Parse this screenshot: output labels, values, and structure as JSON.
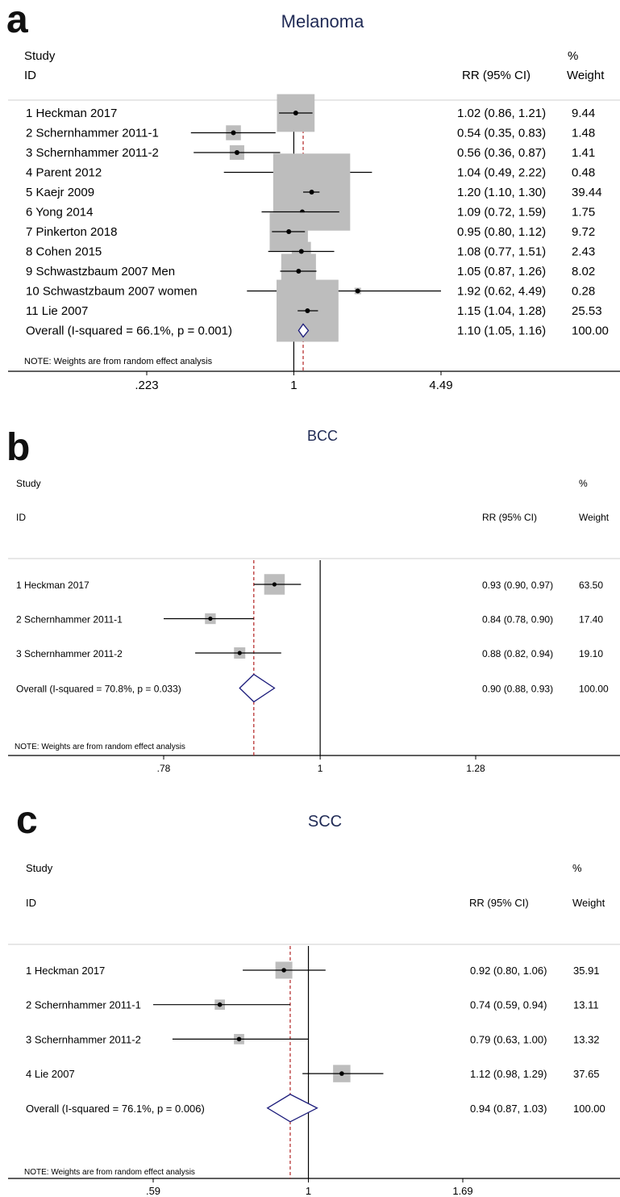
{
  "chart_data": [
    {
      "type": "forest",
      "panel_letter": "a",
      "title": "Melanoma",
      "header": {
        "study": "Study",
        "id": "ID",
        "rr": "RR (95% CI)",
        "pct": "%",
        "weight": "Weight"
      },
      "studies": [
        {
          "label": "1 Heckman 2017",
          "rr": 1.02,
          "lo": 0.86,
          "hi": 1.21,
          "rr_text": "1.02 (0.86, 1.21)",
          "weight": 9.44,
          "weight_text": "9.44"
        },
        {
          "label": "2 Schernhammer 2011-1",
          "rr": 0.54,
          "lo": 0.35,
          "hi": 0.83,
          "rr_text": "0.54 (0.35, 0.83)",
          "weight": 1.48,
          "weight_text": "1.48"
        },
        {
          "label": "3 Schernhammer 2011-2",
          "rr": 0.56,
          "lo": 0.36,
          "hi": 0.87,
          "rr_text": "0.56 (0.36, 0.87)",
          "weight": 1.41,
          "weight_text": "1.41"
        },
        {
          "label": "4 Parent 2012",
          "rr": 1.04,
          "lo": 0.49,
          "hi": 2.22,
          "rr_text": "1.04 (0.49, 2.22)",
          "weight": 0.48,
          "weight_text": "0.48"
        },
        {
          "label": "5 Kaejr 2009",
          "rr": 1.2,
          "lo": 1.1,
          "hi": 1.3,
          "rr_text": "1.20 (1.10, 1.30)",
          "weight": 39.44,
          "weight_text": "39.44"
        },
        {
          "label": "6 Yong 2014",
          "rr": 1.09,
          "lo": 0.72,
          "hi": 1.59,
          "rr_text": "1.09 (0.72, 1.59)",
          "weight": 1.75,
          "weight_text": "1.75"
        },
        {
          "label": "7 Pinkerton 2018",
          "rr": 0.95,
          "lo": 0.8,
          "hi": 1.12,
          "rr_text": "0.95 (0.80, 1.12)",
          "weight": 9.72,
          "weight_text": "9.72"
        },
        {
          "label": "8 Cohen 2015",
          "rr": 1.08,
          "lo": 0.77,
          "hi": 1.51,
          "rr_text": "1.08 (0.77, 1.51)",
          "weight": 2.43,
          "weight_text": "2.43"
        },
        {
          "label": "9 Schwastzbaum 2007 Men",
          "rr": 1.05,
          "lo": 0.87,
          "hi": 1.26,
          "rr_text": "1.05 (0.87, 1.26)",
          "weight": 8.02,
          "weight_text": "8.02"
        },
        {
          "label": "10 Schwastzbaum 2007 women",
          "rr": 1.92,
          "lo": 0.62,
          "hi": 4.49,
          "rr_text": "1.92 (0.62, 4.49)",
          "weight": 0.28,
          "weight_text": "0.28"
        },
        {
          "label": "11 Lie 2007",
          "rr": 1.15,
          "lo": 1.04,
          "hi": 1.28,
          "rr_text": "1.15 (1.04, 1.28)",
          "weight": 25.53,
          "weight_text": "25.53"
        }
      ],
      "overall": {
        "label": "Overall  (I-squared = 66.1%, p = 0.001)",
        "rr": 1.1,
        "lo": 1.05,
        "hi": 1.16,
        "rr_text": "1.10 (1.05, 1.16)",
        "weight_text": "100.00"
      },
      "note": "NOTE: Weights are from random effect analysis",
      "x_scale": "log",
      "xlim": [
        0.223,
        4.49
      ],
      "ticks": [
        {
          "value": 0.223,
          "label": ".223"
        },
        {
          "value": 1,
          "label": "1"
        },
        {
          "value": 4.49,
          "label": "4.49"
        }
      ]
    },
    {
      "type": "forest",
      "panel_letter": "b",
      "title": "BCC",
      "header": {
        "study": "Study",
        "id": "ID",
        "rr": "RR (95% CI)",
        "pct": "%",
        "weight": "Weight"
      },
      "studies": [
        {
          "label": "1  Heckman 2017",
          "rr": 0.93,
          "lo": 0.9,
          "hi": 0.97,
          "rr_text": "0.93 (0.90, 0.97)",
          "weight": 63.5,
          "weight_text": "63.50"
        },
        {
          "label": "2  Schernhammer 2011-1",
          "rr": 0.84,
          "lo": 0.78,
          "hi": 0.9,
          "rr_text": "0.84 (0.78, 0.90)",
          "weight": 17.4,
          "weight_text": "17.40"
        },
        {
          "label": "3  Schernhammer 2011-2",
          "rr": 0.88,
          "lo": 0.82,
          "hi": 0.94,
          "rr_text": "0.88 (0.82, 0.94)",
          "weight": 19.1,
          "weight_text": "19.10"
        }
      ],
      "overall": {
        "label": "Overall  (I-squared = 70.8%, p = 0.033)",
        "rr": 0.9,
        "lo": 0.88,
        "hi": 0.93,
        "rr_text": "0.90 (0.88, 0.93)",
        "weight_text": "100.00"
      },
      "note": "NOTE: Weights are from random effect analysis",
      "x_scale": "log",
      "xlim": [
        0.78,
        1.28
      ],
      "ticks": [
        {
          "value": 0.78,
          "label": ".78"
        },
        {
          "value": 1,
          "label": "1"
        },
        {
          "value": 1.28,
          "label": "1.28"
        }
      ]
    },
    {
      "type": "forest",
      "panel_letter": "c",
      "title": "SCC",
      "header": {
        "study": "Study",
        "id": "ID",
        "rr": "RR (95% CI)",
        "pct": "%",
        "weight": "Weight"
      },
      "studies": [
        {
          "label": "1 Heckman 2017",
          "rr": 0.92,
          "lo": 0.8,
          "hi": 1.06,
          "rr_text": "0.92 (0.80, 1.06)",
          "weight": 35.91,
          "weight_text": "35.91"
        },
        {
          "label": "2 Schernhammer 2011-1",
          "rr": 0.74,
          "lo": 0.59,
          "hi": 0.94,
          "rr_text": "0.74 (0.59, 0.94)",
          "weight": 13.11,
          "weight_text": "13.11"
        },
        {
          "label": "3 Schernhammer 2011-2",
          "rr": 0.79,
          "lo": 0.63,
          "hi": 1.0,
          "rr_text": "0.79 (0.63, 1.00)",
          "weight": 13.32,
          "weight_text": "13.32"
        },
        {
          "label": "4 Lie 2007",
          "rr": 1.12,
          "lo": 0.98,
          "hi": 1.29,
          "rr_text": "1.12 (0.98, 1.29)",
          "weight": 37.65,
          "weight_text": "37.65"
        }
      ],
      "overall": {
        "label": "Overall  (I-squared = 76.1%, p = 0.006)",
        "rr": 0.94,
        "lo": 0.87,
        "hi": 1.03,
        "rr_text": "0.94 (0.87, 1.03)",
        "weight_text": "100.00"
      },
      "note": "NOTE: Weights are from random effect analysis",
      "x_scale": "log",
      "xlim": [
        0.59,
        1.69
      ],
      "ticks": [
        {
          "value": 0.59,
          "label": ".59"
        },
        {
          "value": 1,
          "label": "1"
        },
        {
          "value": 1.69,
          "label": "1.69"
        }
      ]
    }
  ],
  "colors": {
    "title": "#1f2a55",
    "box": "#bdbdbd",
    "line": "#000000",
    "dashed_line": "#b22222",
    "diamond": "#1a1a7a",
    "axis": "#000000",
    "text": "#000000"
  }
}
